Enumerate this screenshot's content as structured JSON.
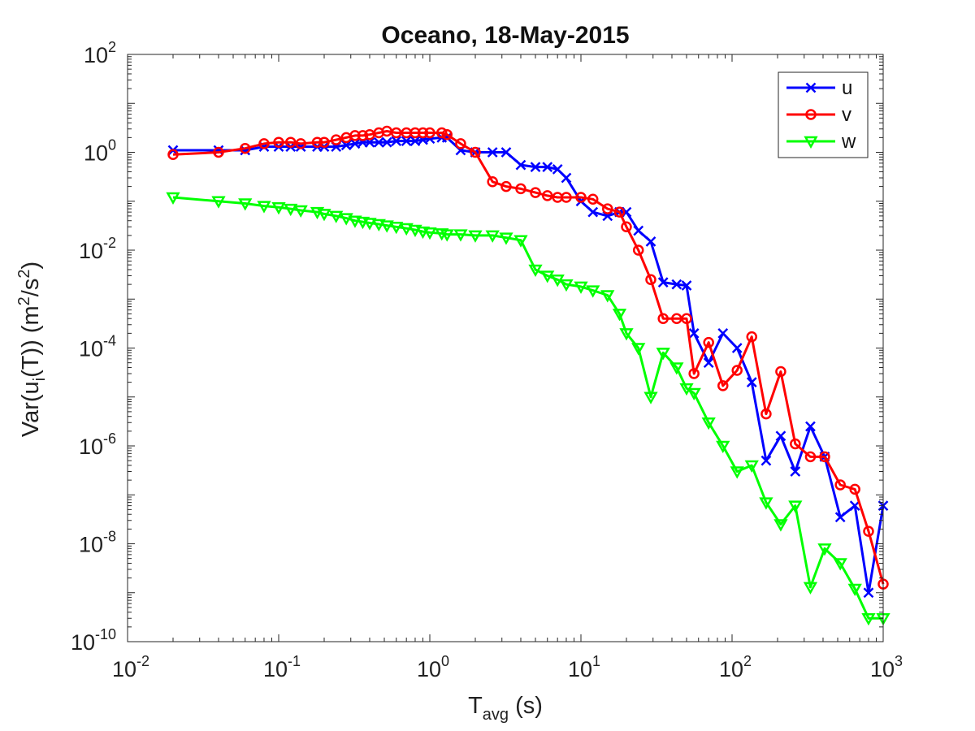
{
  "chart_data": {
    "type": "line",
    "title": "Oceano, 18-May-2015",
    "xlabel": {
      "base": "T",
      "sub": "avg",
      "suffix": " (s)"
    },
    "ylabel": {
      "p1": "Var(u",
      "sub": "i",
      "p2": "(T)) (m",
      "sup1": "2",
      "p3": "/s",
      "sup2": "2",
      "p4": ")"
    },
    "xscale": "log",
    "yscale": "log",
    "xlim": [
      0.01,
      1000
    ],
    "ylim": [
      1e-10,
      100
    ],
    "xticks": [
      {
        "base": "10",
        "exp": "-2"
      },
      {
        "base": "10",
        "exp": "-1"
      },
      {
        "base": "10",
        "exp": "0"
      },
      {
        "base": "10",
        "exp": "1"
      },
      {
        "base": "10",
        "exp": "2"
      },
      {
        "base": "10",
        "exp": "3"
      }
    ],
    "yticks": [
      {
        "base": "10",
        "exp": "-10"
      },
      {
        "base": "10",
        "exp": "-8"
      },
      {
        "base": "10",
        "exp": "-6"
      },
      {
        "base": "10",
        "exp": "-4"
      },
      {
        "base": "10",
        "exp": "-2"
      },
      {
        "base": "10",
        "exp": "0"
      },
      {
        "base": "10",
        "exp": "2"
      }
    ],
    "grid": false,
    "legend_position": "top-right",
    "series": [
      {
        "name": "u",
        "color": "#0000ff",
        "marker": "x",
        "x": [
          0.02,
          0.04,
          0.06,
          0.08,
          0.1,
          0.12,
          0.14,
          0.18,
          0.2,
          0.24,
          0.28,
          0.32,
          0.36,
          0.4,
          0.46,
          0.52,
          0.6,
          0.7,
          0.8,
          0.9,
          1.0,
          1.2,
          1.3,
          1.6,
          2.0,
          2.6,
          3.2,
          4.0,
          5.0,
          6.0,
          7.0,
          8.0,
          10.0,
          12.0,
          15.0,
          18.0,
          20.0,
          24.0,
          29.0,
          35.0,
          43.0,
          50.0,
          56.0,
          70.0,
          87.0,
          108.0,
          135.0,
          168.0,
          210.0,
          262.0,
          330.0,
          410.0,
          520.0,
          650.0,
          800.0,
          1000.0
        ],
        "y": [
          1.1,
          1.1,
          1.1,
          1.3,
          1.3,
          1.3,
          1.3,
          1.3,
          1.3,
          1.3,
          1.4,
          1.5,
          1.6,
          1.6,
          1.6,
          1.6,
          1.7,
          1.7,
          1.7,
          1.8,
          1.9,
          2.0,
          2.0,
          1.1,
          1.0,
          1.0,
          1.0,
          0.55,
          0.5,
          0.5,
          0.45,
          0.3,
          0.1,
          0.06,
          0.05,
          0.06,
          0.06,
          0.025,
          0.015,
          0.0022,
          0.002,
          0.0019,
          0.0002,
          5e-05,
          0.0002,
          0.0001,
          2e-05,
          5e-07,
          1.6e-06,
          3e-07,
          2.5e-06,
          6e-07,
          3.5e-08,
          6e-08,
          1e-09,
          6e-08
        ]
      },
      {
        "name": "v",
        "color": "#ff0000",
        "marker": "o",
        "x": [
          0.02,
          0.04,
          0.06,
          0.08,
          0.1,
          0.12,
          0.14,
          0.18,
          0.2,
          0.24,
          0.28,
          0.32,
          0.36,
          0.4,
          0.46,
          0.52,
          0.6,
          0.7,
          0.8,
          0.9,
          1.0,
          1.2,
          1.3,
          1.6,
          2.0,
          2.6,
          3.2,
          4.0,
          5.0,
          6.0,
          7.0,
          8.0,
          10.0,
          12.0,
          15.0,
          18.0,
          20.0,
          24.0,
          29.0,
          35.0,
          43.0,
          50.0,
          56.0,
          70.0,
          87.0,
          108.0,
          135.0,
          168.0,
          210.0,
          262.0,
          330.0,
          410.0,
          520.0,
          650.0,
          800.0,
          1000.0
        ],
        "y": [
          0.9,
          1.0,
          1.2,
          1.5,
          1.6,
          1.6,
          1.5,
          1.6,
          1.6,
          1.8,
          2.0,
          2.2,
          2.2,
          2.3,
          2.5,
          2.7,
          2.5,
          2.5,
          2.5,
          2.5,
          2.5,
          2.5,
          2.3,
          1.5,
          1.0,
          0.25,
          0.2,
          0.18,
          0.15,
          0.13,
          0.12,
          0.12,
          0.12,
          0.11,
          0.07,
          0.06,
          0.03,
          0.01,
          0.0025,
          0.0004,
          0.0004,
          0.0004,
          3e-05,
          0.00013,
          1.7e-05,
          3.5e-05,
          0.00017,
          4.5e-06,
          3.3e-05,
          1.1e-06,
          6e-07,
          6e-07,
          1.6e-07,
          1.3e-07,
          1.8e-08,
          1.5e-09
        ]
      },
      {
        "name": "w",
        "color": "#00ff00",
        "marker": "v",
        "x": [
          0.02,
          0.04,
          0.06,
          0.08,
          0.1,
          0.12,
          0.14,
          0.18,
          0.2,
          0.24,
          0.28,
          0.32,
          0.36,
          0.4,
          0.46,
          0.52,
          0.6,
          0.7,
          0.8,
          0.9,
          1.0,
          1.2,
          1.3,
          1.6,
          2.0,
          2.6,
          3.2,
          4.0,
          5.0,
          6.0,
          7.0,
          8.0,
          10.0,
          12.0,
          15.0,
          18.0,
          20.0,
          24.0,
          29.0,
          35.0,
          43.0,
          50.0,
          56.0,
          70.0,
          87.0,
          108.0,
          135.0,
          168.0,
          210.0,
          262.0,
          330.0,
          410.0,
          520.0,
          650.0,
          800.0,
          1000.0
        ],
        "y": [
          0.12,
          0.1,
          0.09,
          0.08,
          0.075,
          0.07,
          0.065,
          0.06,
          0.055,
          0.05,
          0.045,
          0.04,
          0.038,
          0.036,
          0.034,
          0.032,
          0.03,
          0.028,
          0.026,
          0.024,
          0.023,
          0.022,
          0.021,
          0.021,
          0.02,
          0.02,
          0.018,
          0.016,
          0.004,
          0.003,
          0.0025,
          0.002,
          0.0018,
          0.0015,
          0.0012,
          0.0005,
          0.0002,
          0.0001,
          1e-05,
          8e-05,
          4e-05,
          1.5e-05,
          1.2e-05,
          3e-06,
          1e-06,
          3e-07,
          4e-07,
          7e-08,
          2.5e-08,
          6e-08,
          1.3e-09,
          8e-09,
          4e-09,
          1.2e-09,
          3e-10,
          3e-10
        ]
      }
    ]
  }
}
